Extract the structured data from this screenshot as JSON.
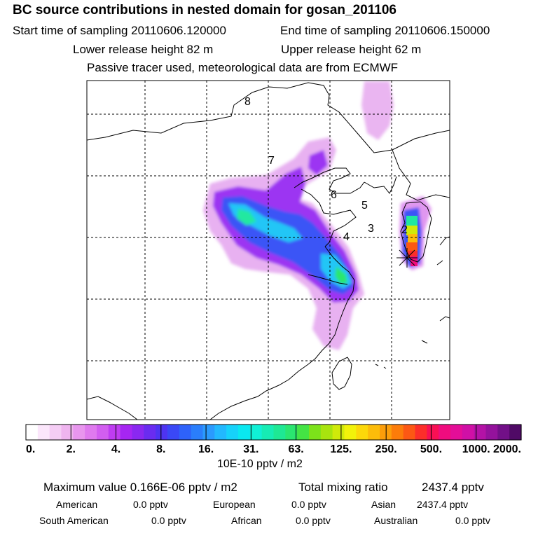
{
  "header": {
    "title": "BC  source contributions in nested domain for gosan_201106",
    "start_sampling": "Start time of sampling 20110606.120000",
    "end_sampling": "End time of sampling 20110606.150000",
    "lower_release": "Lower release height   82 m",
    "upper_release": "Upper release height   62 m",
    "tracer_note": "Passive tracer used, meteorological data are from ECMWF"
  },
  "map": {
    "region_labels": [
      "8",
      "7",
      "6",
      "5",
      "4",
      "3",
      "2"
    ],
    "receptor_marker": "gosan-star"
  },
  "chart_data": {
    "type": "heatmap",
    "title": "BC  source contributions in nested domain for gosan_201106",
    "colorbar": {
      "tick_labels": [
        "0.",
        "2.",
        "4.",
        "8.",
        "16.",
        "31.",
        "63.",
        "125.",
        "250.",
        "500.",
        "1000.",
        "2000."
      ],
      "tick_values": [
        0,
        2,
        4,
        8,
        16,
        31,
        63,
        125,
        250,
        500,
        1000,
        2000
      ],
      "unit": "10E-10 pptv / m2",
      "colors": [
        "#ffffff",
        "#fbe6fb",
        "#f5cdf5",
        "#efb4ef",
        "#e896ee",
        "#df7aee",
        "#d25ef0",
        "#bf3cf2",
        "#a626f2",
        "#8a28f0",
        "#6a2cf0",
        "#4e34f2",
        "#3a48f6",
        "#2e62fa",
        "#2a7efc",
        "#2a9afe",
        "#22b8fe",
        "#16d2fa",
        "#0ae8f0",
        "#10f0d6",
        "#16ecb4",
        "#1ee894",
        "#2ae670",
        "#44e444",
        "#7ce21a",
        "#a8e40e",
        "#d0ea0a",
        "#f2f20a",
        "#fcd80a",
        "#fcbc0a",
        "#fc9e0a",
        "#fc7c0a",
        "#fc5814",
        "#fc2e2a",
        "#f81054",
        "#f00c7e",
        "#e40e98",
        "#d010a6",
        "#b412a6",
        "#94129c",
        "#721088",
        "#500a66"
      ]
    },
    "max_value": "Maximum value  0.166E-06 pptv / m2",
    "total_mixing_label": "Total mixing ratio",
    "total_mixing_value": "2437.4 pptv",
    "regional": [
      {
        "region": "American",
        "value": "0.0 pptv"
      },
      {
        "region": "European",
        "value": "0.0 pptv"
      },
      {
        "region": "Asian",
        "value": "2437.4 pptv"
      },
      {
        "region": "South American",
        "value": "0.0 pptv"
      },
      {
        "region": "African",
        "value": "0.0 pptv"
      },
      {
        "region": "Australian",
        "value": "0.0 pptv"
      }
    ]
  }
}
